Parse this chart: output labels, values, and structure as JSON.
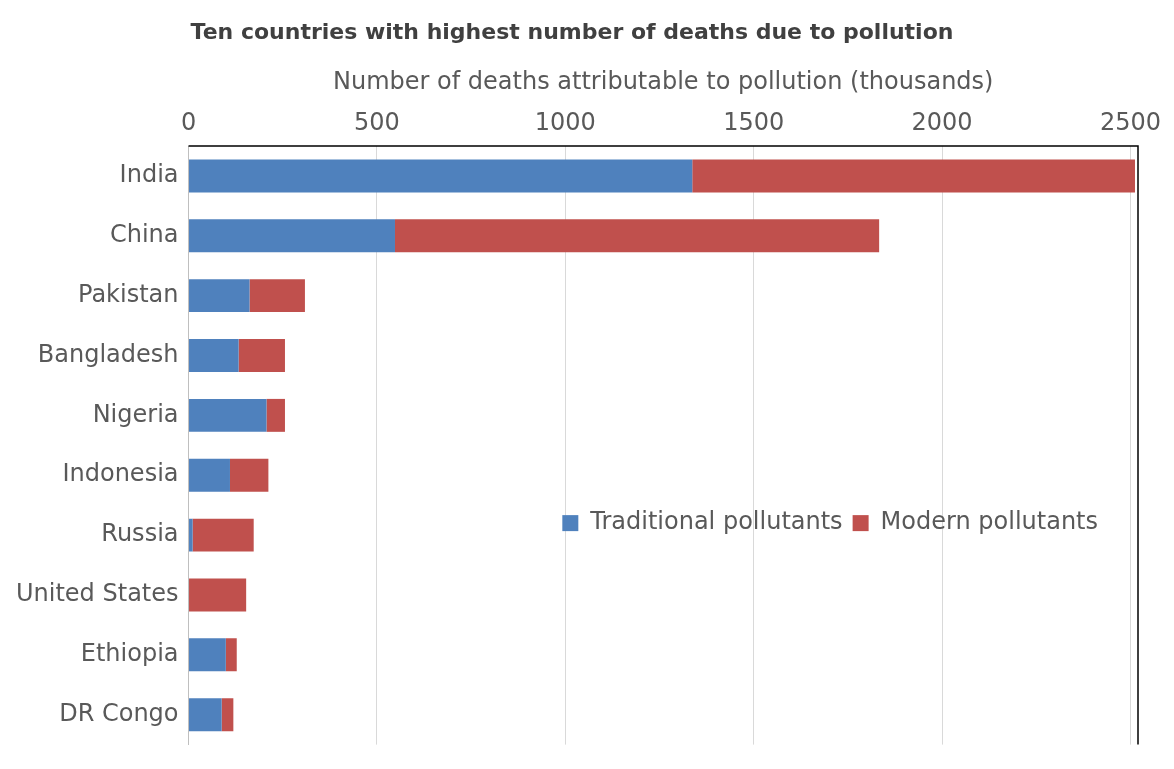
{
  "chart_data": {
    "type": "bar",
    "orientation": "horizontal",
    "stacked": true,
    "title": "Ten countries with highest number of deaths due to pollution",
    "xlabel": "Number of deaths attributable to pollution (thousands)",
    "categories": [
      "India",
      "China",
      "Pakistan",
      "Bangladesh",
      "Nigeria",
      "Indonesia",
      "Russia",
      "United States",
      "Ethiopia",
      "DR Congo"
    ],
    "series": [
      {
        "name": "Traditional pollutants",
        "color": "#4f81bd",
        "values": [
          1337,
          548,
          162,
          133,
          207,
          110,
          11,
          0,
          99,
          88
        ]
      },
      {
        "name": "Modern pollutants",
        "color": "#c0504d",
        "values": [
          1175,
          1285,
          147,
          123,
          49,
          102,
          162,
          153,
          29,
          31
        ]
      }
    ],
    "xlim": [
      0,
      2520
    ],
    "xticks": [
      0,
      500,
      1000,
      1500,
      2000,
      2500
    ],
    "grid": "x",
    "legend": "right"
  }
}
